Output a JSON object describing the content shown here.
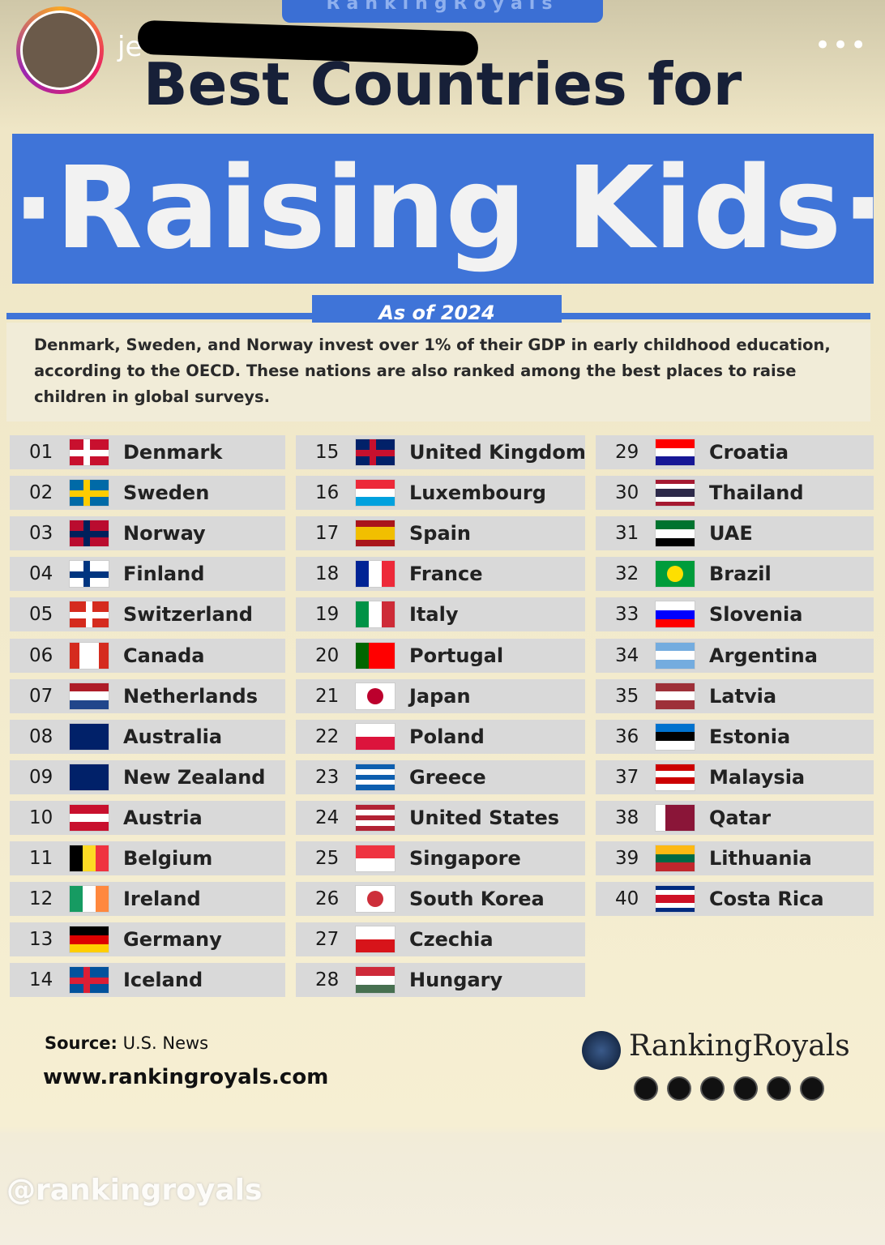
{
  "story": {
    "username": "je",
    "brand_banner": "RankingRoyals"
  },
  "header": {
    "title": "Best Countries for",
    "highlight": "·Raising Kids·",
    "date": "As of 2024",
    "description": "Denmark, Sweden, and Norway invest over 1% of their GDP in early childhood education, according to the OECD. These nations are also ranked among the best places to raise children in global surveys."
  },
  "table": {
    "rows": [
      {
        "rank": "01",
        "country": "Denmark"
      },
      {
        "rank": "02",
        "country": "Sweden"
      },
      {
        "rank": "03",
        "country": "Norway"
      },
      {
        "rank": "04",
        "country": "Finland"
      },
      {
        "rank": "05",
        "country": "Switzerland"
      },
      {
        "rank": "06",
        "country": "Canada"
      },
      {
        "rank": "07",
        "country": "Netherlands"
      },
      {
        "rank": "08",
        "country": "Australia"
      },
      {
        "rank": "09",
        "country": "New Zealand"
      },
      {
        "rank": "10",
        "country": "Austria"
      },
      {
        "rank": "11",
        "country": "Belgium"
      },
      {
        "rank": "12",
        "country": "Ireland"
      },
      {
        "rank": "13",
        "country": "Germany"
      },
      {
        "rank": "14",
        "country": "Iceland"
      },
      {
        "rank": "15",
        "country": "United Kingdom"
      },
      {
        "rank": "16",
        "country": "Luxembourg"
      },
      {
        "rank": "17",
        "country": "Spain"
      },
      {
        "rank": "18",
        "country": "France"
      },
      {
        "rank": "19",
        "country": "Italy"
      },
      {
        "rank": "20",
        "country": "Portugal"
      },
      {
        "rank": "21",
        "country": "Japan"
      },
      {
        "rank": "22",
        "country": "Poland"
      },
      {
        "rank": "23",
        "country": "Greece"
      },
      {
        "rank": "24",
        "country": "United States"
      },
      {
        "rank": "25",
        "country": "Singapore"
      },
      {
        "rank": "26",
        "country": "South Korea"
      },
      {
        "rank": "27",
        "country": "Czechia"
      },
      {
        "rank": "28",
        "country": "Hungary"
      },
      {
        "rank": "29",
        "country": "Croatia"
      },
      {
        "rank": "30",
        "country": "Thailand"
      },
      {
        "rank": "31",
        "country": "UAE"
      },
      {
        "rank": "32",
        "country": "Brazil"
      },
      {
        "rank": "33",
        "country": "Slovenia"
      },
      {
        "rank": "34",
        "country": "Argentina"
      },
      {
        "rank": "35",
        "country": "Latvia"
      },
      {
        "rank": "36",
        "country": "Estonia"
      },
      {
        "rank": "37",
        "country": "Malaysia"
      },
      {
        "rank": "38",
        "country": "Qatar"
      },
      {
        "rank": "39",
        "country": "Lithuania"
      },
      {
        "rank": "40",
        "country": "Costa Rica"
      }
    ]
  },
  "footer": {
    "source_label": "Source:",
    "source": "U.S. News",
    "website": "www.rankingroyals.com",
    "brand": "RankingRoyals",
    "watermark": "@rankingroyals"
  }
}
